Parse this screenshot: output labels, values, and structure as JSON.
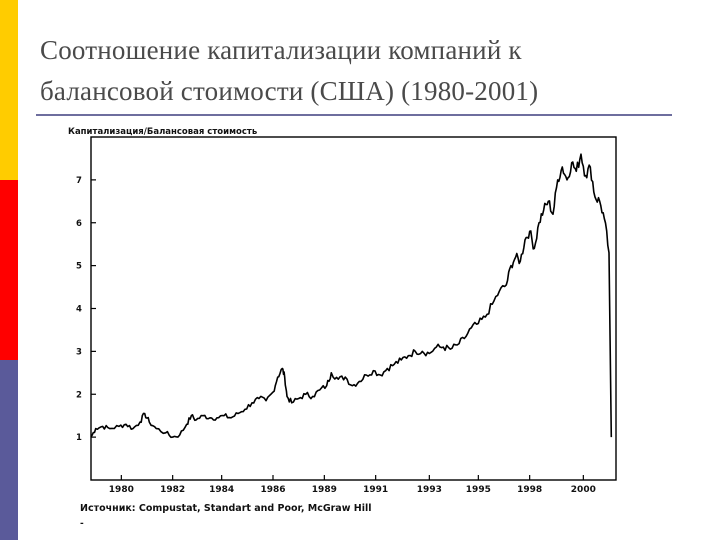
{
  "slide": {
    "title_line1": "Соотношение капитализации компаний к",
    "title_line2": "балансовой стоимости (США) (1980-2001)",
    "accent_colors": {
      "yellow": "#FFCC00",
      "red": "#FF0000",
      "blue": "#5A5A9A",
      "rule": "#6E6E9E"
    }
  },
  "chart_data": {
    "type": "line",
    "title": "Капитализация/Балансовая стоимость",
    "source": "Источник: Compustat, Standart and Poor, McGraw Hill",
    "footnote": "-",
    "ylim": [
      0,
      8
    ],
    "yticks": [
      1,
      2,
      3,
      4,
      5,
      6,
      7
    ],
    "xlim": [
      1978.7,
      2001.2
    ],
    "xticks": [
      {
        "label": "1980",
        "x": 1980.0
      },
      {
        "label": "1982",
        "x": 1982.2
      },
      {
        "label": "1984",
        "x": 1984.3
      },
      {
        "label": "1986",
        "x": 1986.5
      },
      {
        "label": "1989",
        "x": 1988.7
      },
      {
        "label": "1991",
        "x": 1990.9
      },
      {
        "label": "1993",
        "x": 1993.2
      },
      {
        "label": "1995",
        "x": 1995.3
      },
      {
        "label": "1998",
        "x": 1997.5
      },
      {
        "label": "2000",
        "x": 1999.8
      }
    ],
    "grid": false,
    "series": [
      {
        "points": [
          [
            1978.7,
            1.0
          ],
          [
            1978.9,
            1.2
          ],
          [
            1979.2,
            1.25
          ],
          [
            1979.5,
            1.2
          ],
          [
            1979.9,
            1.25
          ],
          [
            1980.2,
            1.3
          ],
          [
            1980.5,
            1.2
          ],
          [
            1980.8,
            1.35
          ],
          [
            1981.0,
            1.55
          ],
          [
            1981.2,
            1.35
          ],
          [
            1981.5,
            1.2
          ],
          [
            1981.9,
            1.1
          ],
          [
            1982.2,
            1.0
          ],
          [
            1982.5,
            1.05
          ],
          [
            1982.8,
            1.3
          ],
          [
            1983.0,
            1.5
          ],
          [
            1983.2,
            1.4
          ],
          [
            1983.5,
            1.5
          ],
          [
            1983.8,
            1.45
          ],
          [
            1984.1,
            1.45
          ],
          [
            1984.4,
            1.5
          ],
          [
            1984.7,
            1.45
          ],
          [
            1985.0,
            1.55
          ],
          [
            1985.3,
            1.65
          ],
          [
            1985.6,
            1.8
          ],
          [
            1985.9,
            1.9
          ],
          [
            1986.2,
            1.85
          ],
          [
            1986.5,
            2.05
          ],
          [
            1986.7,
            2.4
          ],
          [
            1986.9,
            2.6
          ],
          [
            1987.0,
            2.4
          ],
          [
            1987.1,
            1.95
          ],
          [
            1987.3,
            1.8
          ],
          [
            1987.6,
            1.9
          ],
          [
            1987.9,
            2.0
          ],
          [
            1988.2,
            1.95
          ],
          [
            1988.5,
            2.1
          ],
          [
            1988.8,
            2.2
          ],
          [
            1989.0,
            2.5
          ],
          [
            1989.3,
            2.35
          ],
          [
            1989.6,
            2.4
          ],
          [
            1989.9,
            2.2
          ],
          [
            1990.2,
            2.3
          ],
          [
            1990.5,
            2.45
          ],
          [
            1990.8,
            2.55
          ],
          [
            1991.1,
            2.45
          ],
          [
            1991.4,
            2.6
          ],
          [
            1991.7,
            2.7
          ],
          [
            1992.0,
            2.8
          ],
          [
            1992.3,
            2.9
          ],
          [
            1992.6,
            3.0
          ],
          [
            1992.9,
            3.0
          ],
          [
            1993.2,
            2.95
          ],
          [
            1993.5,
            3.1
          ],
          [
            1993.8,
            3.1
          ],
          [
            1994.1,
            3.05
          ],
          [
            1994.4,
            3.15
          ],
          [
            1994.7,
            3.3
          ],
          [
            1995.0,
            3.55
          ],
          [
            1995.3,
            3.65
          ],
          [
            1995.6,
            3.8
          ],
          [
            1995.9,
            4.1
          ],
          [
            1996.2,
            4.4
          ],
          [
            1996.5,
            4.55
          ],
          [
            1996.7,
            5.0
          ],
          [
            1996.9,
            5.2
          ],
          [
            1997.1,
            5.1
          ],
          [
            1997.3,
            5.6
          ],
          [
            1997.5,
            5.8
          ],
          [
            1997.7,
            5.4
          ],
          [
            1997.9,
            6.0
          ],
          [
            1998.1,
            6.3
          ],
          [
            1998.3,
            6.5
          ],
          [
            1998.5,
            6.2
          ],
          [
            1998.7,
            7.0
          ],
          [
            1998.9,
            7.3
          ],
          [
            1999.1,
            7.0
          ],
          [
            1999.3,
            7.4
          ],
          [
            1999.5,
            7.2
          ],
          [
            1999.7,
            7.6
          ],
          [
            1999.9,
            7.1
          ],
          [
            2000.1,
            7.3
          ],
          [
            2000.3,
            6.6
          ],
          [
            2000.5,
            6.5
          ],
          [
            2000.7,
            6.1
          ],
          [
            2000.9,
            5.3
          ],
          [
            2001.0,
            1.0
          ]
        ]
      }
    ]
  }
}
